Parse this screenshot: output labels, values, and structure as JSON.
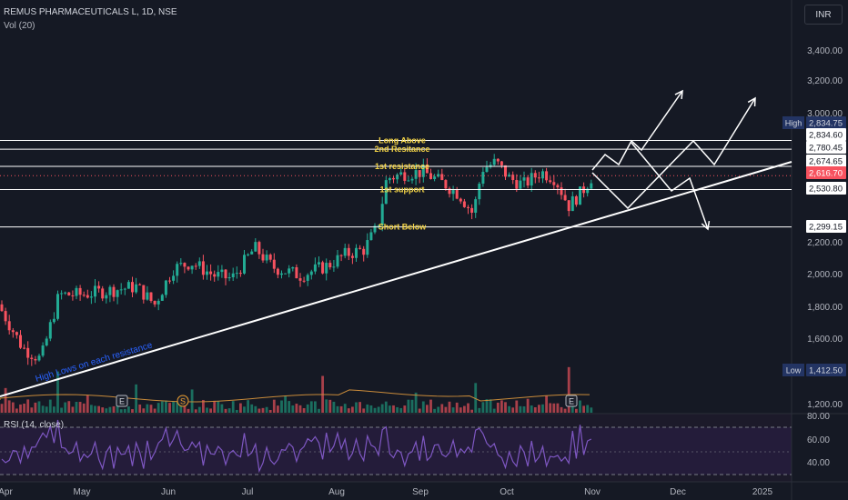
{
  "header": {
    "title": "REMUS PHARMACEUTICALS L, 1D, NSE",
    "volume_label": "Vol (20)",
    "currency": "INR"
  },
  "rsi": {
    "label": "RSI (14, close)",
    "levels": [
      "80.00",
      "60.00",
      "40.00"
    ]
  },
  "y_ticks": [
    "3,400.00",
    "3,200.00",
    "3,000.00",
    "2,200.00",
    "2,000.00",
    "1,800.00",
    "1,600.00",
    "1,200.00"
  ],
  "x_ticks": [
    "Apr",
    "May",
    "Jun",
    "Jul",
    "Aug",
    "Sep",
    "Oct",
    "Nov",
    "Dec",
    "2025"
  ],
  "price_tags": [
    {
      "text": "High",
      "value": "2,834.75",
      "color": "#233463",
      "text_color": "#d1d4dc"
    },
    {
      "text": "",
      "value": "2,834.60",
      "color": "#ffffff",
      "text_color": "#131722"
    },
    {
      "text": "",
      "value": "2,780.45",
      "color": "#ffffff",
      "text_color": "#131722"
    },
    {
      "text": "",
      "value": "2,674.65",
      "color": "#ffffff",
      "text_color": "#131722"
    },
    {
      "text": "",
      "value": "2,616.70",
      "color": "#f7525f",
      "text_color": "#ffffff"
    },
    {
      "text": "",
      "value": "2,530.80",
      "color": "#ffffff",
      "text_color": "#131722"
    },
    {
      "text": "",
      "value": "2,299.15",
      "color": "#ffffff",
      "text_color": "#131722"
    },
    {
      "text": "Low",
      "value": "1,412.50",
      "color": "#233463",
      "text_color": "#d1d4dc"
    }
  ],
  "levels": [
    {
      "label": "Long Above",
      "value": 2834.6
    },
    {
      "label": "2nd Resitance",
      "value": 2780.45
    },
    {
      "label": "1st resistance",
      "value": 2674.65
    },
    {
      "label": "1st support",
      "value": 2530.8
    },
    {
      "label": "Short Below",
      "value": 2299.15
    }
  ],
  "trendline_label": "High Lows on each resistance",
  "events": [
    "E",
    "S",
    "E"
  ],
  "colors": {
    "up": "#22ab94",
    "down": "#f7525f",
    "level_text": "#f5d547",
    "trend_text": "#2962ff",
    "rsi_line": "#7e57c2"
  },
  "chart_data": {
    "type": "candlestick",
    "title": "REMUS PHARMACEUTICALS L, 1D, NSE",
    "price_range": [
      1100,
      3550
    ],
    "high": 2834.75,
    "low": 1412.5,
    "last": 2616.7,
    "monthly_close_approx": {
      "Apr": 1560,
      "May": 1900,
      "Jun": 2040,
      "Jul": 2180,
      "Aug": 2650,
      "Sep": 2620,
      "Oct": 2500,
      "Nov": 2616.7
    }
  }
}
